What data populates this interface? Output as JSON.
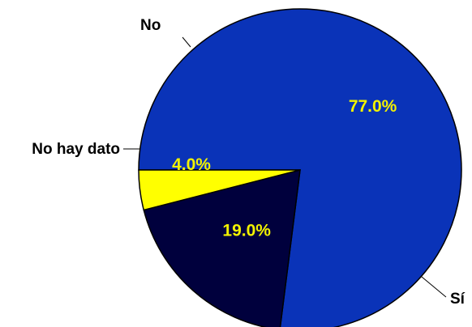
{
  "chart_data": {
    "type": "pie",
    "categories": [
      "Sí",
      "No",
      "No hay dato"
    ],
    "values": [
      77.0,
      19.0,
      4.0
    ],
    "data_labels": [
      "77.0%",
      "19.0%",
      "4.0%"
    ],
    "colors": [
      "#0a33b8",
      "#00003d",
      "#ffff00"
    ],
    "label_color": "#f2f200",
    "start_angle_deg": 180,
    "direction": "clockwise",
    "legend": "none",
    "title": ""
  }
}
